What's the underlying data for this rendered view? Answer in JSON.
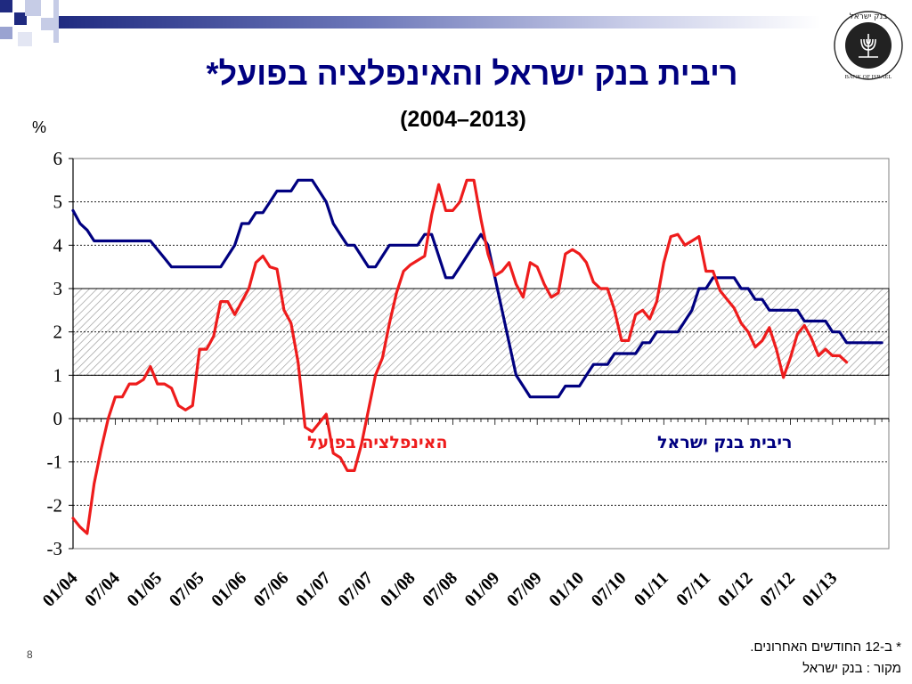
{
  "slide": {
    "title": "ריבית בנק ישראל והאינפלציה בפועל*",
    "subtitle": "(2004–2013)",
    "unit": "%",
    "footnote1": "* ב-12 החודשים האחרונים.",
    "footnote2": "מקור : בנק ישראל",
    "page_number": "8",
    "logo_text_he": "בנק ישראל",
    "logo_text_en": "BANK OF ISRAEL"
  },
  "chart_data": {
    "type": "line",
    "title": "ריבית בנק ישראל והאינפלציה בפועל*",
    "subtitle": "(2004–2013)",
    "ylabel": "%",
    "ylim": [
      -3,
      6
    ],
    "yticks": [
      -3,
      -2,
      -1,
      0,
      1,
      2,
      3,
      4,
      5,
      6
    ],
    "grid": true,
    "target_band": [
      1,
      3
    ],
    "x_tick_labels": [
      "01/04",
      "07/04",
      "01/05",
      "07/05",
      "01/06",
      "07/06",
      "01/07",
      "07/07",
      "01/08",
      "07/08",
      "01/09",
      "07/09",
      "01/10",
      "07/10",
      "01/11",
      "07/11",
      "01/12",
      "07/12",
      "01/13"
    ],
    "colors": {
      "rate": "#000080",
      "inflation": "#ee1c1c",
      "band_hatch": "#9a9a9a"
    },
    "series": [
      {
        "name": "ריבית בנק ישראל",
        "color": "#000080",
        "points": [
          [
            0,
            4.8
          ],
          [
            1,
            4.5
          ],
          [
            2,
            4.35
          ],
          [
            3,
            4.1
          ],
          [
            4,
            4.1
          ],
          [
            5,
            4.1
          ],
          [
            6,
            4.1
          ],
          [
            7,
            4.1
          ],
          [
            8,
            4.1
          ],
          [
            9,
            4.1
          ],
          [
            10,
            4.1
          ],
          [
            11,
            4.1
          ],
          [
            12,
            3.9
          ],
          [
            13,
            3.7
          ],
          [
            14,
            3.5
          ],
          [
            15,
            3.5
          ],
          [
            16,
            3.5
          ],
          [
            17,
            3.5
          ],
          [
            18,
            3.5
          ],
          [
            19,
            3.5
          ],
          [
            20,
            3.5
          ],
          [
            21,
            3.5
          ],
          [
            22,
            3.75
          ],
          [
            23,
            4.0
          ],
          [
            24,
            4.5
          ],
          [
            25,
            4.5
          ],
          [
            26,
            4.75
          ],
          [
            27,
            4.75
          ],
          [
            28,
            5.0
          ],
          [
            29,
            5.25
          ],
          [
            30,
            5.25
          ],
          [
            31,
            5.25
          ],
          [
            32,
            5.5
          ],
          [
            33,
            5.5
          ],
          [
            34,
            5.5
          ],
          [
            35,
            5.25
          ],
          [
            36,
            5.0
          ],
          [
            37,
            4.5
          ],
          [
            38,
            4.25
          ],
          [
            39,
            4.0
          ],
          [
            40,
            4.0
          ],
          [
            41,
            3.75
          ],
          [
            42,
            3.5
          ],
          [
            43,
            3.5
          ],
          [
            44,
            3.75
          ],
          [
            45,
            4.0
          ],
          [
            46,
            4.0
          ],
          [
            47,
            4.0
          ],
          [
            48,
            4.0
          ],
          [
            49,
            4.0
          ],
          [
            50,
            4.25
          ],
          [
            51,
            4.25
          ],
          [
            52,
            3.75
          ],
          [
            53,
            3.25
          ],
          [
            54,
            3.25
          ],
          [
            55,
            3.5
          ],
          [
            56,
            3.75
          ],
          [
            57,
            4.0
          ],
          [
            58,
            4.25
          ],
          [
            59,
            4.0
          ],
          [
            60,
            3.25
          ],
          [
            61,
            2.5
          ],
          [
            62,
            1.75
          ],
          [
            63,
            1.0
          ],
          [
            64,
            0.75
          ],
          [
            65,
            0.5
          ],
          [
            66,
            0.5
          ],
          [
            67,
            0.5
          ],
          [
            68,
            0.5
          ],
          [
            69,
            0.5
          ],
          [
            70,
            0.75
          ],
          [
            71,
            0.75
          ],
          [
            72,
            0.75
          ],
          [
            73,
            1.0
          ],
          [
            74,
            1.25
          ],
          [
            75,
            1.25
          ],
          [
            76,
            1.25
          ],
          [
            77,
            1.5
          ],
          [
            78,
            1.5
          ],
          [
            79,
            1.5
          ],
          [
            80,
            1.5
          ],
          [
            81,
            1.75
          ],
          [
            82,
            1.75
          ],
          [
            83,
            2.0
          ],
          [
            84,
            2.0
          ],
          [
            85,
            2.0
          ],
          [
            86,
            2.0
          ],
          [
            87,
            2.25
          ],
          [
            88,
            2.5
          ],
          [
            89,
            3.0
          ],
          [
            90,
            3.0
          ],
          [
            91,
            3.25
          ],
          [
            92,
            3.25
          ],
          [
            93,
            3.25
          ],
          [
            94,
            3.25
          ],
          [
            95,
            3.0
          ],
          [
            96,
            3.0
          ],
          [
            97,
            2.75
          ],
          [
            98,
            2.75
          ],
          [
            99,
            2.5
          ],
          [
            100,
            2.5
          ],
          [
            101,
            2.5
          ],
          [
            102,
            2.5
          ],
          [
            103,
            2.5
          ],
          [
            104,
            2.25
          ],
          [
            105,
            2.25
          ],
          [
            106,
            2.25
          ],
          [
            107,
            2.25
          ],
          [
            108,
            2.0
          ],
          [
            109,
            2.0
          ],
          [
            110,
            1.75
          ],
          [
            111,
            1.75
          ],
          [
            112,
            1.75
          ],
          [
            113,
            1.75
          ],
          [
            114,
            1.75
          ],
          [
            115,
            1.75
          ]
        ]
      },
      {
        "name": "האינפלציה בפועל",
        "color": "#ee1c1c",
        "points": [
          [
            0,
            -2.3
          ],
          [
            1,
            -2.5
          ],
          [
            2,
            -2.65
          ],
          [
            3,
            -1.5
          ],
          [
            4,
            -0.7
          ],
          [
            5,
            0.0
          ],
          [
            6,
            0.5
          ],
          [
            7,
            0.5
          ],
          [
            8,
            0.8
          ],
          [
            9,
            0.8
          ],
          [
            10,
            0.9
          ],
          [
            11,
            1.2
          ],
          [
            12,
            0.8
          ],
          [
            13,
            0.8
          ],
          [
            14,
            0.7
          ],
          [
            15,
            0.3
          ],
          [
            16,
            0.2
          ],
          [
            17,
            0.3
          ],
          [
            18,
            1.6
          ],
          [
            19,
            1.6
          ],
          [
            20,
            1.9
          ],
          [
            21,
            2.7
          ],
          [
            22,
            2.7
          ],
          [
            23,
            2.4
          ],
          [
            24,
            2.7
          ],
          [
            25,
            3.0
          ],
          [
            26,
            3.6
          ],
          [
            27,
            3.75
          ],
          [
            28,
            3.5
          ],
          [
            29,
            3.45
          ],
          [
            30,
            2.5
          ],
          [
            31,
            2.2
          ],
          [
            32,
            1.3
          ],
          [
            33,
            -0.2
          ],
          [
            34,
            -0.3
          ],
          [
            35,
            -0.1
          ],
          [
            36,
            0.1
          ],
          [
            37,
            -0.8
          ],
          [
            38,
            -0.9
          ],
          [
            39,
            -1.2
          ],
          [
            40,
            -1.2
          ],
          [
            41,
            -0.6
          ],
          [
            42,
            0.2
          ],
          [
            43,
            1.0
          ],
          [
            44,
            1.4
          ],
          [
            45,
            2.2
          ],
          [
            46,
            2.9
          ],
          [
            47,
            3.4
          ],
          [
            48,
            3.55
          ],
          [
            49,
            3.65
          ],
          [
            50,
            3.75
          ],
          [
            51,
            4.7
          ],
          [
            52,
            5.4
          ],
          [
            53,
            4.8
          ],
          [
            54,
            4.8
          ],
          [
            55,
            5.0
          ],
          [
            56,
            5.5
          ],
          [
            57,
            5.5
          ],
          [
            58,
            4.6
          ],
          [
            59,
            3.8
          ],
          [
            60,
            3.3
          ],
          [
            61,
            3.4
          ],
          [
            62,
            3.6
          ],
          [
            63,
            3.1
          ],
          [
            64,
            2.8
          ],
          [
            65,
            3.6
          ],
          [
            66,
            3.5
          ],
          [
            67,
            3.1
          ],
          [
            68,
            2.8
          ],
          [
            69,
            2.9
          ],
          [
            70,
            3.8
          ],
          [
            71,
            3.9
          ],
          [
            72,
            3.8
          ],
          [
            73,
            3.6
          ],
          [
            74,
            3.15
          ],
          [
            75,
            3.0
          ],
          [
            76,
            3.0
          ],
          [
            77,
            2.5
          ],
          [
            78,
            1.8
          ],
          [
            79,
            1.8
          ],
          [
            80,
            2.4
          ],
          [
            81,
            2.5
          ],
          [
            82,
            2.3
          ],
          [
            83,
            2.7
          ],
          [
            84,
            3.6
          ],
          [
            85,
            4.2
          ],
          [
            86,
            4.25
          ],
          [
            87,
            4.0
          ],
          [
            88,
            4.1
          ],
          [
            89,
            4.2
          ],
          [
            90,
            3.4
          ],
          [
            91,
            3.4
          ],
          [
            92,
            2.95
          ],
          [
            93,
            2.75
          ],
          [
            94,
            2.55
          ],
          [
            95,
            2.2
          ],
          [
            96,
            2.0
          ],
          [
            97,
            1.65
          ],
          [
            98,
            1.8
          ],
          [
            99,
            2.1
          ],
          [
            100,
            1.6
          ],
          [
            101,
            0.95
          ],
          [
            102,
            1.4
          ],
          [
            103,
            1.95
          ],
          [
            104,
            2.15
          ],
          [
            105,
            1.85
          ],
          [
            106,
            1.45
          ],
          [
            107,
            1.6
          ],
          [
            108,
            1.45
          ],
          [
            109,
            1.45
          ],
          [
            110,
            1.3
          ]
        ]
      }
    ],
    "annotations": [
      {
        "text": "האינפלציה בפועל",
        "color": "#ee1c1c"
      },
      {
        "text": "ריבית בנק ישראל",
        "color": "#000080"
      }
    ]
  }
}
